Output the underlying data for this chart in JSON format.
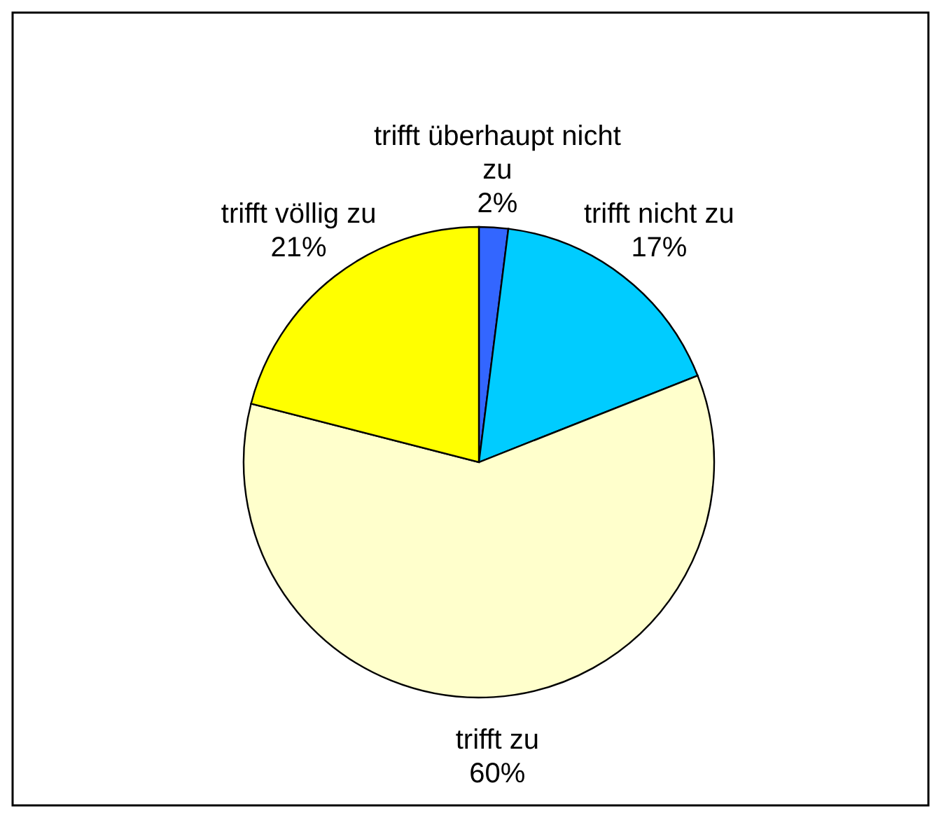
{
  "chart_data": {
    "type": "pie",
    "categories": [
      "trifft überhaupt nicht zu",
      "trifft nicht zu",
      "trifft zu",
      "trifft völlig zu"
    ],
    "values": [
      2,
      17,
      60,
      21
    ],
    "value_labels": [
      "2%",
      "17%",
      "60%",
      "21%"
    ],
    "colors": [
      "#3366ff",
      "#00ccff",
      "#ffffcc",
      "#ffff00"
    ],
    "legend": false
  }
}
